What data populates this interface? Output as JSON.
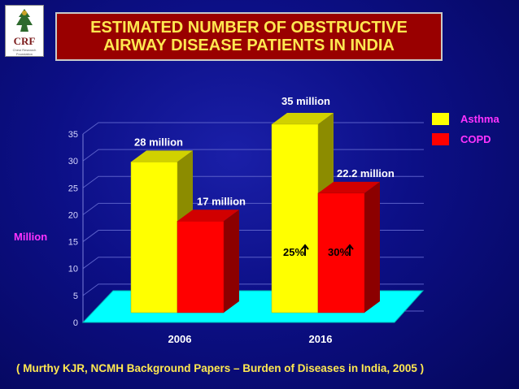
{
  "logo": {
    "text": "CRF",
    "subtext": "Chest Research Foundation"
  },
  "title": {
    "line1": "ESTIMATED NUMBER OF OBSTRUCTIVE",
    "line2": "AIRWAY DISEASE PATIENTS IN INDIA"
  },
  "footer": "( Murthy KJR, NCMH Background Papers – Burden of Diseases in India, 2005 )",
  "colors": {
    "asthma": "#ffff00",
    "copd": "#ff0000",
    "floor": "#00ffff",
    "title_bg": "#990000",
    "text": "#ffe850",
    "label": "#ff33ff"
  },
  "chart_data": {
    "type": "bar",
    "title": "",
    "xlabel": "",
    "ylabel": "Million",
    "ylim": [
      0,
      35
    ],
    "yticks": [
      "0",
      "5",
      "10",
      "15",
      "20",
      "25",
      "30",
      "35"
    ],
    "categories": [
      "2006",
      "2016"
    ],
    "series": [
      {
        "name": "Asthma",
        "values": [
          28,
          35
        ],
        "labels": [
          "28 million",
          "35 million"
        ]
      },
      {
        "name": "COPD",
        "values": [
          17,
          22.2
        ],
        "labels": [
          "17 million",
          "22.2 million"
        ]
      }
    ],
    "annotations": [
      "25%",
      "30%"
    ],
    "legend_position": "top-right",
    "grid": true
  }
}
